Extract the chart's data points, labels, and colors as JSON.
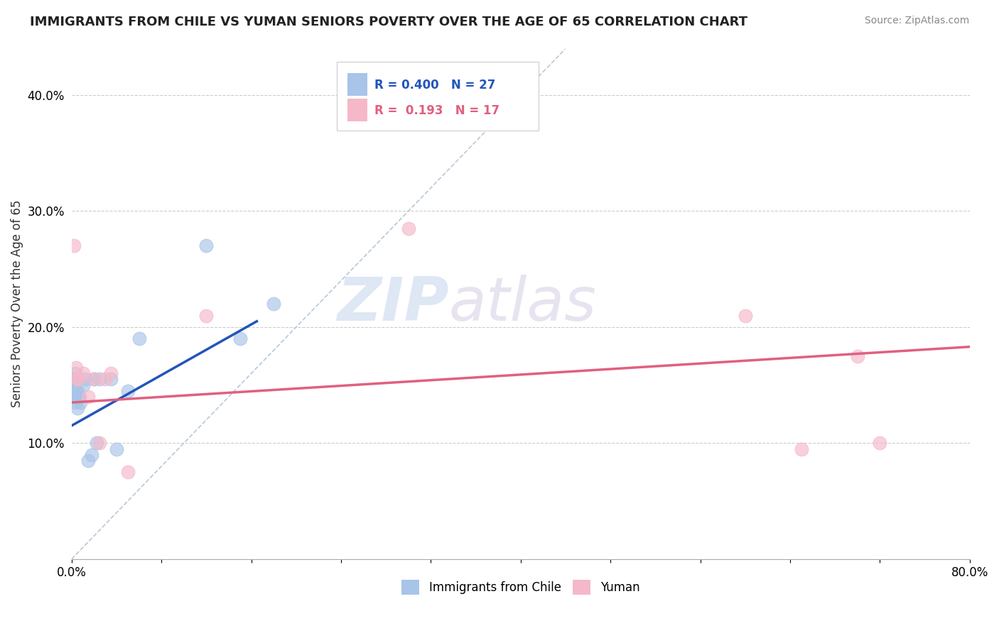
{
  "title": "IMMIGRANTS FROM CHILE VS YUMAN SENIORS POVERTY OVER THE AGE OF 65 CORRELATION CHART",
  "source_text": "Source: ZipAtlas.com",
  "ylabel": "Seniors Poverty Over the Age of 65",
  "xlim": [
    0.0,
    0.8
  ],
  "ylim": [
    0.0,
    0.44
  ],
  "xticks": [
    0.0,
    0.08,
    0.16,
    0.24,
    0.32,
    0.4,
    0.48,
    0.56,
    0.64,
    0.72,
    0.8
  ],
  "xtick_labels": [
    "0.0%",
    "",
    "",
    "",
    "",
    "",
    "",
    "",
    "",
    "",
    "80.0%"
  ],
  "yticks": [
    0.0,
    0.1,
    0.2,
    0.3,
    0.4
  ],
  "ytick_labels": [
    "",
    "10.0%",
    "20.0%",
    "30.0%",
    "40.0%"
  ],
  "grid_color": "#cccccc",
  "background_color": "#ffffff",
  "watermark_zip": "ZIP",
  "watermark_atlas": "atlas",
  "legend_r1": "R = 0.400",
  "legend_n1": "N = 27",
  "legend_r2": "R =  0.193",
  "legend_n2": "N = 17",
  "blue_color": "#a8c4e8",
  "pink_color": "#f5b8c8",
  "blue_line_color": "#2255bb",
  "pink_line_color": "#e06080",
  "diag_line_color": "#b8c8d8",
  "chile_points_x": [
    0.001,
    0.002,
    0.002,
    0.003,
    0.003,
    0.004,
    0.004,
    0.005,
    0.005,
    0.006,
    0.006,
    0.007,
    0.008,
    0.01,
    0.012,
    0.015,
    0.018,
    0.02,
    0.022,
    0.025,
    0.035,
    0.04,
    0.05,
    0.06,
    0.12,
    0.15,
    0.18
  ],
  "chile_points_y": [
    0.145,
    0.155,
    0.14,
    0.16,
    0.135,
    0.145,
    0.155,
    0.13,
    0.145,
    0.14,
    0.155,
    0.14,
    0.135,
    0.15,
    0.155,
    0.085,
    0.09,
    0.155,
    0.1,
    0.155,
    0.155,
    0.095,
    0.145,
    0.19,
    0.27,
    0.19,
    0.22
  ],
  "yuman_points_x": [
    0.002,
    0.004,
    0.005,
    0.006,
    0.01,
    0.015,
    0.02,
    0.025,
    0.03,
    0.035,
    0.05,
    0.12,
    0.3,
    0.6,
    0.65,
    0.7,
    0.72
  ],
  "yuman_points_y": [
    0.27,
    0.165,
    0.155,
    0.155,
    0.16,
    0.14,
    0.155,
    0.1,
    0.155,
    0.16,
    0.075,
    0.21,
    0.285,
    0.21,
    0.095,
    0.175,
    0.1
  ],
  "chile_trendline_x": [
    0.0,
    0.165
  ],
  "chile_trendline_y": [
    0.115,
    0.205
  ],
  "yuman_trendline_x": [
    0.0,
    0.8
  ],
  "yuman_trendline_y": [
    0.135,
    0.183
  ],
  "diag_line_x": [
    0.0,
    0.44
  ],
  "diag_line_y": [
    0.0,
    0.44
  ]
}
